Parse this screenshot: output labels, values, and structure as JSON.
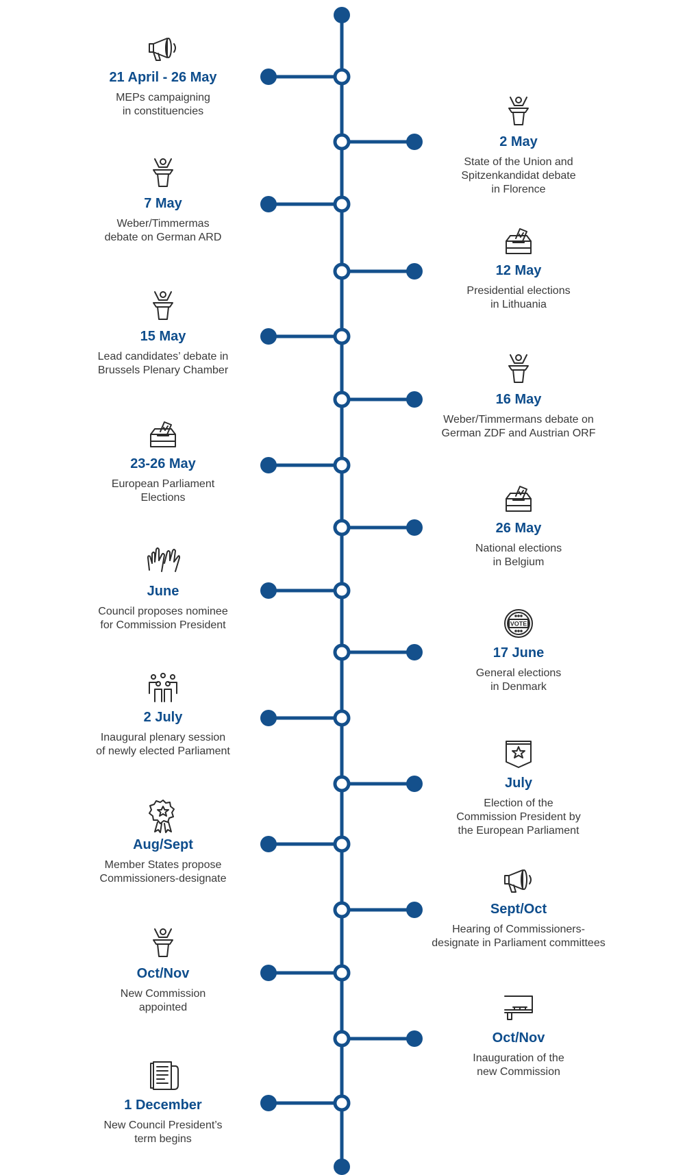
{
  "colors": {
    "line": "#14508c",
    "date": "#0e4d8c",
    "text": "#3a3a3a",
    "icon": "#2b2b2b"
  },
  "timeline": {
    "events": [
      {
        "side": "left",
        "icon": "megaphone-icon",
        "date": "21 April - 26 May",
        "desc": "MEPs campaigning\nin constituencies"
      },
      {
        "side": "right",
        "icon": "speaker-podium-icon",
        "date": "2 May",
        "desc": "State of the Union and\nSpitzenkandidat debate\nin Florence"
      },
      {
        "side": "left",
        "icon": "speaker-podium-icon",
        "date": "7 May",
        "desc": "Weber/Timmermas\ndebate on German ARD"
      },
      {
        "side": "right",
        "icon": "ballot-box-icon",
        "date": "12 May",
        "desc": "Presidential elections\nin Lithuania"
      },
      {
        "side": "left",
        "icon": "speaker-podium-icon",
        "date": "15 May",
        "desc": "Lead candidates’ debate in\nBrussels Plenary Chamber"
      },
      {
        "side": "right",
        "icon": "speaker-podium-icon",
        "date": "16 May",
        "desc": "Weber/Timmermans debate on\nGerman ZDF and Austrian ORF"
      },
      {
        "side": "left",
        "icon": "ballot-box-icon",
        "date": "23-26 May",
        "desc": "European Parliament\nElections"
      },
      {
        "side": "right",
        "icon": "ballot-box-icon",
        "date": "26 May",
        "desc": "National elections\nin Belgium"
      },
      {
        "side": "left",
        "icon": "raised-hands-icon",
        "date": "June",
        "desc": "Council proposes nominee\nfor Commission President"
      },
      {
        "side": "right",
        "icon": "vote-badge-icon",
        "date": "17 June",
        "desc": "General elections\nin Denmark"
      },
      {
        "side": "left",
        "icon": "people-group-icon",
        "date": "2 July",
        "desc": "Inaugural plenary session\nof newly elected Parliament"
      },
      {
        "side": "right",
        "icon": "star-banner-icon",
        "date": "July",
        "desc": "Election of the\nCommission President by\nthe European Parliament"
      },
      {
        "side": "left",
        "icon": "award-rosette-icon",
        "date": "Aug/Sept",
        "desc": "Member States propose\nCommissioners-designate"
      },
      {
        "side": "right",
        "icon": "megaphone-icon",
        "date": "Sept/Oct",
        "desc": "Hearing of Commissioners-\ndesignate in Parliament committees"
      },
      {
        "side": "left",
        "icon": "speaker-podium-icon",
        "date": "Oct/Nov",
        "desc": "New Commission\nappointed"
      },
      {
        "side": "right",
        "icon": "panel-table-icon",
        "date": "Oct/Nov",
        "desc": "Inauguration of the\nnew Commission"
      },
      {
        "side": "left",
        "icon": "document-scroll-icon",
        "date": "1 December",
        "desc": "New Council President’s\nterm begins"
      }
    ]
  }
}
